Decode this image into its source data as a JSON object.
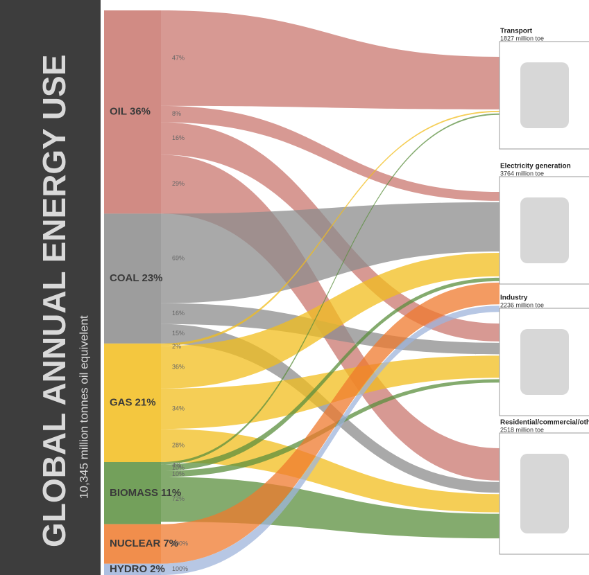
{
  "chart_data": {
    "type": "sankey",
    "title": "GLOBAL ANNUAL ENERGY USE",
    "subtitle": "10,345 million tonnes oil equivelent",
    "targets": [
      {
        "name": "Transport",
        "value": 1827,
        "value_label": "1827 million toe"
      },
      {
        "name": "Electricity generation",
        "value": 3764,
        "value_label": "3764 million toe"
      },
      {
        "name": "Industry",
        "value": 2236,
        "value_label": "2236 million toe"
      },
      {
        "name": "Residential/commercial/other",
        "value": 2518,
        "value_label": "2518 million toe"
      }
    ],
    "sources": [
      {
        "name": "OIL",
        "share": 36,
        "share_label": "36%",
        "color": "#c9776f",
        "values": [
          47,
          8,
          16,
          29
        ],
        "value_labels": [
          "47%",
          "8%",
          "16%",
          "29%"
        ]
      },
      {
        "name": "COAL",
        "share": 23,
        "share_label": "23%",
        "color": "#8c8c8c",
        "values": [
          null,
          69,
          16,
          15
        ],
        "value_labels": [
          null,
          "69%",
          "16%",
          "15%"
        ]
      },
      {
        "name": "GAS",
        "share": 21,
        "share_label": "21%",
        "color": "#f2bd1d",
        "values": [
          2,
          36,
          34,
          28
        ],
        "value_labels": [
          "2%",
          "36%",
          "34%",
          "28%"
        ]
      },
      {
        "name": "BIOMASS",
        "share": 11,
        "share_label": "11%",
        "color": "#5b8f3e",
        "values": [
          4,
          10,
          10,
          72
        ],
        "value_labels": [
          "4%",
          "10%",
          "10%",
          "72%"
        ]
      },
      {
        "name": "NUCLEAR",
        "share": 7,
        "share_label": "7%",
        "color": "#ef7a2d",
        "values": [
          null,
          100,
          null,
          null
        ],
        "value_labels": [
          null,
          "100%",
          null,
          null
        ]
      },
      {
        "name": "HYDRO",
        "share": 2,
        "share_label": "2%",
        "color": "#9fb4db",
        "values": [
          null,
          100,
          null,
          null
        ],
        "value_labels": [
          null,
          "100%",
          null,
          null
        ]
      }
    ]
  }
}
